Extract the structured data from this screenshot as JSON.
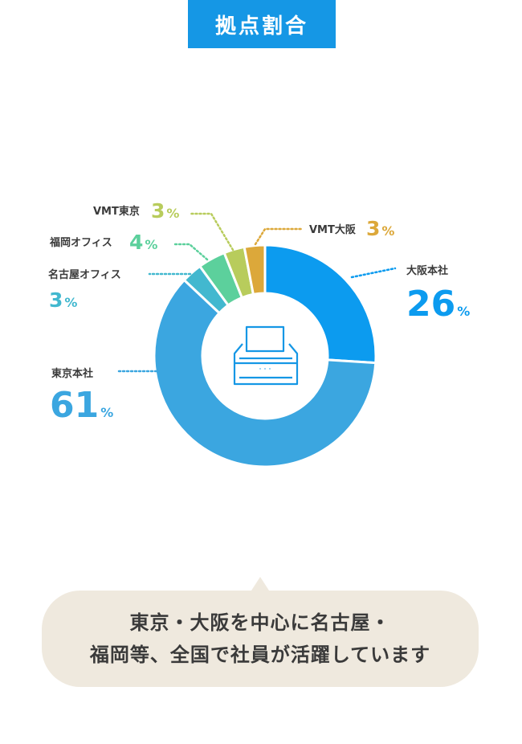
{
  "title": "拠点割合",
  "chart_data": {
    "type": "pie",
    "title": "拠点割合",
    "unit": "%",
    "categories": [
      "大阪本社",
      "東京本社",
      "名古屋オフィス",
      "福岡オフィス",
      "VMT東京",
      "VMT大阪"
    ],
    "values": [
      26,
      61,
      3,
      4,
      3,
      3
    ],
    "colors": [
      "#0c9bef",
      "#3ba6e0",
      "#42b8cf",
      "#5cd09c",
      "#b8cc5c",
      "#dca83a"
    ],
    "legend": "callout-labels"
  },
  "center_icon": "printer-icon",
  "callout": {
    "line1": "東京・大阪を中心に名古屋・",
    "line2": "福岡等、全国で社員が活躍しています"
  }
}
